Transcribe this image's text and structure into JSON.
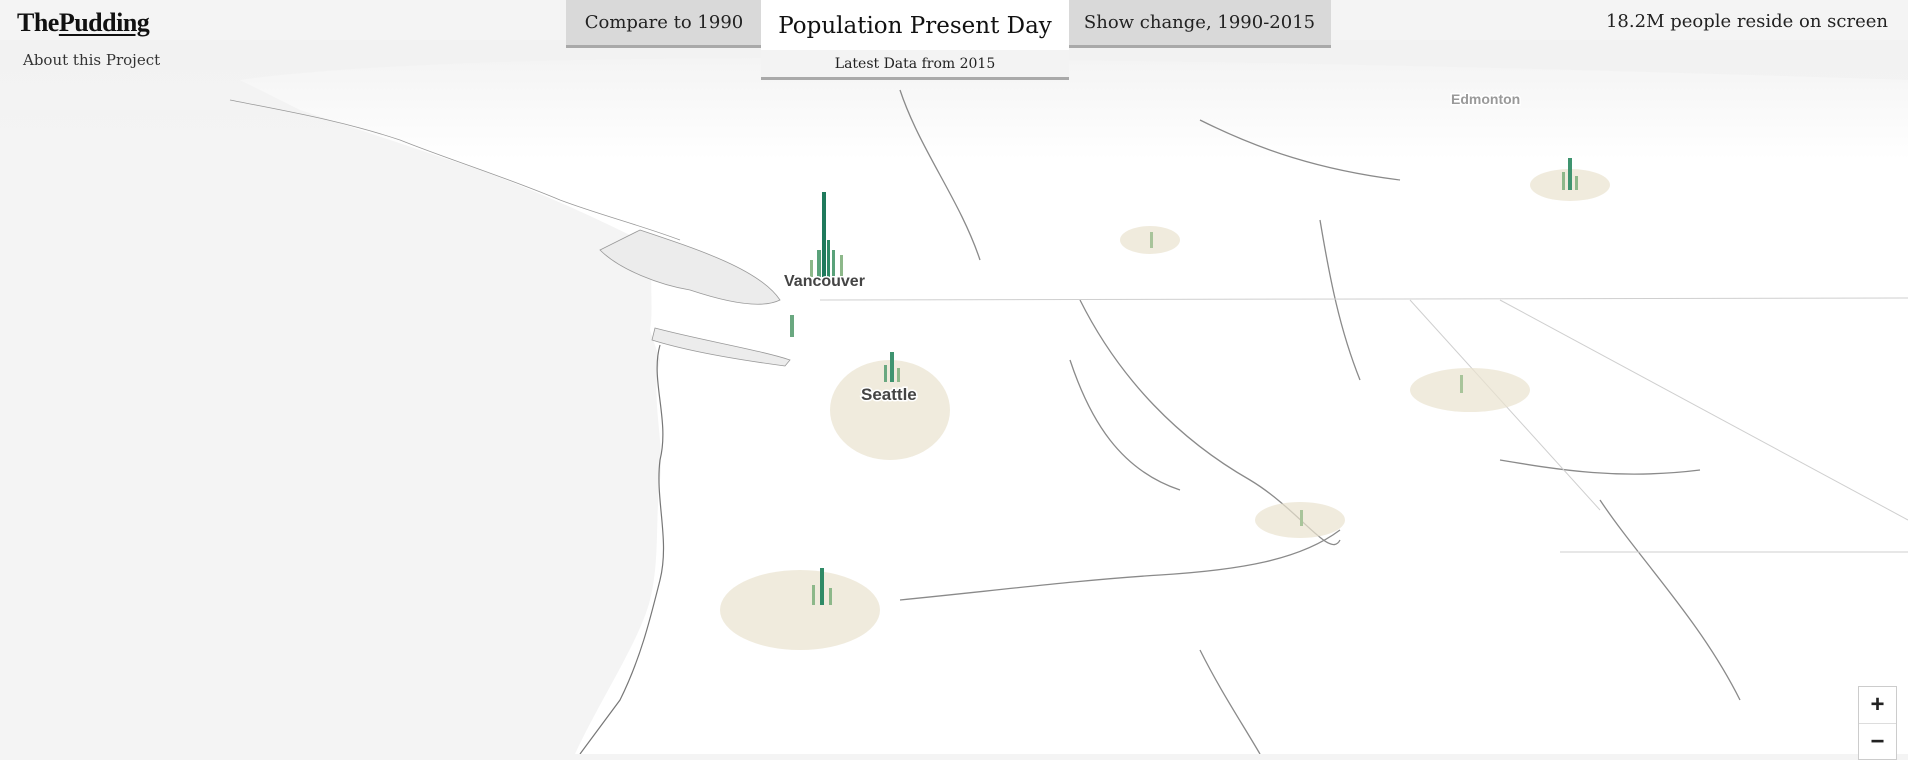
{
  "header": {
    "logo_the": "The",
    "logo_pudding": "Pudding",
    "about_link": "About this Project"
  },
  "tabs": {
    "compare": "Compare to 1990",
    "present": "Population Present Day",
    "present_sub": "Latest Data from 2015",
    "change": "Show change, 1990-2015"
  },
  "stat": "18.2M people reside on screen",
  "cities": {
    "vancouver": "Vancouver",
    "seattle": "Seattle",
    "edmonton": "Edmonton"
  },
  "zoom": {
    "in": "+",
    "out": "−"
  },
  "colors": {
    "spike_dark": "#1f7a5c",
    "spike_light": "#8db88a",
    "land_tint": "#e9e3cf"
  }
}
